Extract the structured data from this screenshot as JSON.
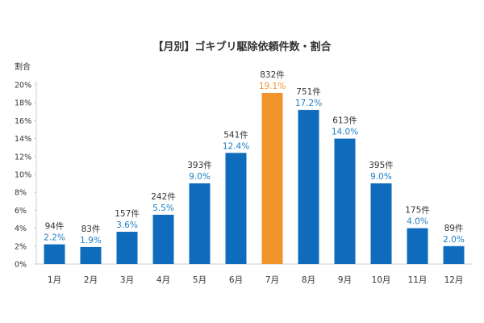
{
  "chart_data": {
    "type": "bar",
    "title": "【月別】ゴキブリ駆除依頼件数・割合",
    "ylabel": "割合",
    "xlabel": "",
    "categories": [
      "1月",
      "2月",
      "3月",
      "4月",
      "5月",
      "6月",
      "7月",
      "8月",
      "9月",
      "10月",
      "11月",
      "12月"
    ],
    "series": [
      {
        "name": "割合",
        "unit": "%",
        "values": [
          2.2,
          1.9,
          3.6,
          5.5,
          9.0,
          12.4,
          19.1,
          17.2,
          14.0,
          9.0,
          4.0,
          2.0
        ]
      }
    ],
    "counts": [
      94,
      83,
      157,
      242,
      393,
      541,
      832,
      751,
      613,
      395,
      175,
      89
    ],
    "count_unit": "件",
    "count_labels": [
      "94件",
      "83件",
      "157件",
      "242件",
      "393件",
      "541件",
      "832件",
      "751件",
      "613件",
      "395件",
      "175件",
      "89件"
    ],
    "percent_labels": [
      "2.2%",
      "1.9%",
      "3.6%",
      "5.5%",
      "9.0%",
      "12.4%",
      "19.1%",
      "17.2%",
      "14.0%",
      "9.0%",
      "4.0%",
      "2.0%"
    ],
    "y_ticks": [
      0,
      2,
      4,
      6,
      8,
      10,
      12,
      14,
      16,
      18,
      20
    ],
    "y_tick_labels": [
      "0%",
      "2%",
      "4%",
      "6%",
      "8%",
      "10%",
      "12%",
      "14%",
      "16%",
      "18%",
      "20%"
    ],
    "ylim": [
      0,
      20
    ],
    "grid": false,
    "highlight_category": "7月",
    "colors": {
      "bar": "#0f6cbd",
      "highlight": "#f0932b",
      "label_blue": "#1f7fc4",
      "label_orange": "#f0932b",
      "text": "#333333",
      "axis": "#cfcfcf"
    }
  }
}
